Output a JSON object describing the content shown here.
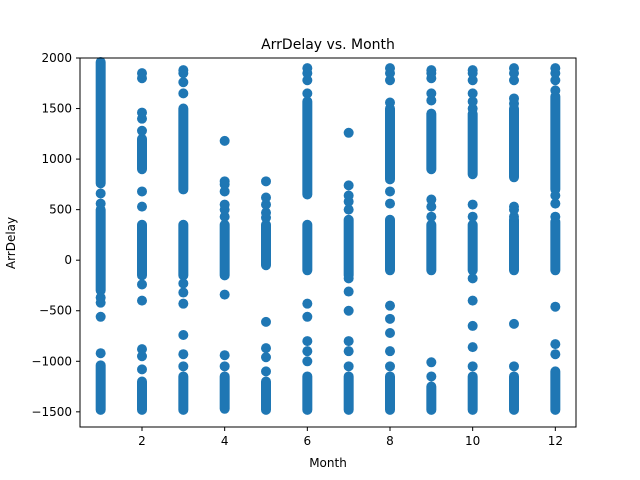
{
  "chart_data": {
    "type": "scatter",
    "title": "ArrDelay vs. Month",
    "xlabel": "Month",
    "ylabel": "ArrDelay",
    "xlim": [
      0.5,
      12.5
    ],
    "ylim": [
      -1650,
      2000
    ],
    "xticks": [
      2,
      4,
      6,
      8,
      10,
      12
    ],
    "yticks": [
      -1500,
      -1000,
      -500,
      0,
      500,
      1000,
      1500,
      2000
    ],
    "grid": false,
    "legend": "none",
    "color": "#1f77b4",
    "groups": [
      {
        "x": 1,
        "bands": [
          [
            -1480,
            -1040
          ],
          [
            -300,
            500
          ],
          [
            760,
            1960
          ]
        ],
        "points": [
          -920,
          -560,
          -420,
          -370,
          560,
          660
        ]
      },
      {
        "x": 2,
        "bands": [
          [
            -1480,
            -1200
          ],
          [
            -150,
            350
          ],
          [
            900,
            1200
          ]
        ],
        "points": [
          -1080,
          -950,
          -880,
          -400,
          -240,
          530,
          680,
          1280,
          1400,
          1460,
          1800,
          1850
        ]
      },
      {
        "x": 3,
        "bands": [
          [
            -1480,
            -1150
          ],
          [
            -150,
            350
          ],
          [
            700,
            1500
          ]
        ],
        "points": [
          -1050,
          -930,
          -740,
          -430,
          -320,
          -230,
          1650,
          1760,
          1850,
          1880
        ]
      },
      {
        "x": 4,
        "bands": [
          [
            -1470,
            -1150
          ],
          [
            -150,
            350
          ]
        ],
        "points": [
          -1050,
          -940,
          -340,
          430,
          500,
          550,
          680,
          750,
          780,
          1180
        ]
      },
      {
        "x": 5,
        "bands": [
          [
            -1480,
            -1200
          ],
          [
            -50,
            350
          ]
        ],
        "points": [
          -1100,
          -960,
          -870,
          -610,
          420,
          470,
          550,
          620,
          780
        ]
      },
      {
        "x": 6,
        "bands": [
          [
            -1480,
            -1150
          ],
          [
            -100,
            350
          ],
          [
            650,
            1570
          ]
        ],
        "points": [
          -1000,
          -900,
          -800,
          -560,
          -430,
          1650,
          1780,
          1850,
          1900
        ]
      },
      {
        "x": 7,
        "bands": [
          [
            -1480,
            -1150
          ],
          [
            -150,
            400
          ]
        ],
        "points": [
          -1050,
          -900,
          -800,
          -500,
          -310,
          -180,
          500,
          580,
          640,
          740,
          1260
        ]
      },
      {
        "x": 8,
        "bands": [
          [
            -1480,
            -1150
          ],
          [
            -100,
            400
          ],
          [
            800,
            1500
          ]
        ],
        "points": [
          -1050,
          -900,
          -720,
          -580,
          -450,
          560,
          680,
          1560,
          1780,
          1850,
          1900
        ]
      },
      {
        "x": 9,
        "bands": [
          [
            -1480,
            -1250
          ],
          [
            -100,
            350
          ],
          [
            900,
            1450
          ]
        ],
        "points": [
          -1150,
          -1010,
          430,
          530,
          600,
          1580,
          1650,
          1800,
          1850,
          1880
        ]
      },
      {
        "x": 10,
        "bands": [
          [
            -1480,
            -1150
          ],
          [
            -100,
            350
          ],
          [
            850,
            1450
          ]
        ],
        "points": [
          -1050,
          -860,
          -650,
          -400,
          -180,
          430,
          550,
          1500,
          1570,
          1650,
          1780,
          1850,
          1880
        ]
      },
      {
        "x": 11,
        "bands": [
          [
            -1480,
            -1150
          ],
          [
            -100,
            400
          ],
          [
            820,
            1500
          ]
        ],
        "points": [
          -1050,
          -630,
          430,
          500,
          530,
          1550,
          1600,
          1780,
          1850,
          1900
        ]
      },
      {
        "x": 12,
        "bands": [
          [
            -1480,
            -1100
          ],
          [
            -100,
            380
          ],
          [
            700,
            1620
          ]
        ],
        "points": [
          -930,
          -830,
          -460,
          430,
          560,
          640,
          1680,
          1780,
          1850,
          1900
        ]
      }
    ]
  }
}
